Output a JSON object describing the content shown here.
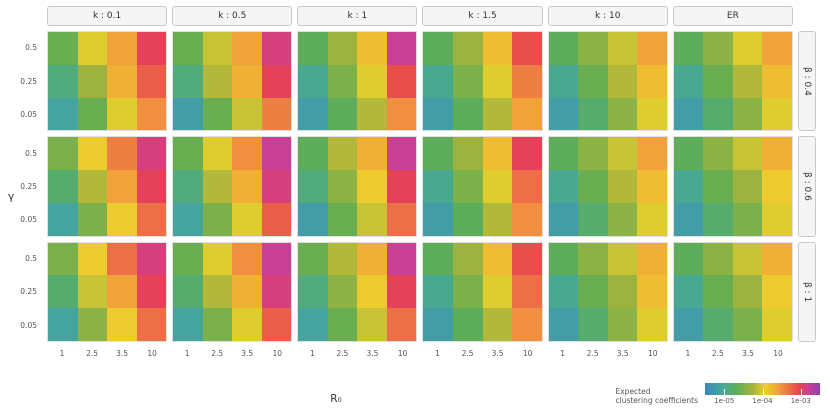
{
  "axes": {
    "x_title": "R₀",
    "y_title": "γ",
    "x_ticks": [
      "1",
      "2.5",
      "3.5",
      "10"
    ],
    "y_ticks": [
      "0.5",
      "0.25",
      "0.05"
    ]
  },
  "facets": {
    "columns": [
      "k : 0.1",
      "k : 0.5",
      "k : 1",
      "k : 1.5",
      "k : 10",
      "ER"
    ],
    "rows": [
      "β : 0.4",
      "β : 0.6",
      "β : 1"
    ]
  },
  "legend": {
    "title_line1": "Expected",
    "title_line2": "clustering coefficients",
    "tick_labels": [
      "1e-05",
      "1e-04",
      "1e-03"
    ],
    "tick_values": [
      1e-05,
      0.0001,
      0.001
    ]
  },
  "palette": {
    "stops": [
      {
        "t": 0.0,
        "color": "#3a87bf"
      },
      {
        "t": 0.15,
        "color": "#46a899"
      },
      {
        "t": 0.28,
        "color": "#5fae54"
      },
      {
        "t": 0.42,
        "color": "#a9b43c"
      },
      {
        "t": 0.52,
        "color": "#ecd22c"
      },
      {
        "t": 0.63,
        "color": "#f2a33a"
      },
      {
        "t": 0.73,
        "color": "#ed7047"
      },
      {
        "t": 0.82,
        "color": "#e8434e"
      },
      {
        "t": 0.9,
        "color": "#cb3f96"
      },
      {
        "t": 1.0,
        "color": "#8f3dab"
      }
    ]
  },
  "chart_data": {
    "type": "heatmap",
    "x": [
      1,
      2.5,
      3.5,
      10
    ],
    "y_top_to_bottom": [
      0.5,
      0.25,
      0.05
    ],
    "facet_cols": [
      "k : 0.1",
      "k : 0.5",
      "k : 1",
      "k : 1.5",
      "k : 10",
      "ER"
    ],
    "facet_rows": [
      "β : 0.4",
      "β : 0.6",
      "β : 1"
    ],
    "fill_label": "Expected clustering coefficients",
    "color_scale": "log10",
    "color_domain_log10": [
      -5.5,
      -2.5
    ],
    "panels": [
      {
        "row": "β : 0.4",
        "col": "k : 0.1",
        "values": [
          [
            2.5e-05,
            0.0001,
            0.00025,
            0.001
          ],
          [
            1.3e-05,
            5e-05,
            0.0002,
            0.00063
          ],
          [
            7.9e-06,
            2.5e-05,
            0.0001,
            0.00032
          ]
        ]
      },
      {
        "row": "β : 0.4",
        "col": "k : 0.5",
        "values": [
          [
            2.5e-05,
            7.9e-05,
            0.00025,
            0.0013
          ],
          [
            1.3e-05,
            6.3e-05,
            0.0002,
            0.001
          ],
          [
            6.3e-06,
            2.5e-05,
            7.9e-05,
            0.0004
          ]
        ]
      },
      {
        "row": "β : 0.4",
        "col": "k : 1",
        "values": [
          [
            2e-05,
            5e-05,
            0.00016,
            0.0016
          ],
          [
            1e-05,
            3.2e-05,
            0.0001,
            0.00079
          ],
          [
            6.3e-06,
            2e-05,
            6.3e-05,
            0.00032
          ]
        ]
      },
      {
        "row": "β : 0.4",
        "col": "k : 1.5",
        "values": [
          [
            2e-05,
            5e-05,
            0.00016,
            0.00079
          ],
          [
            1e-05,
            3.2e-05,
            0.0001,
            0.0004
          ],
          [
            6.3e-06,
            2e-05,
            6.3e-05,
            0.00025
          ]
        ]
      },
      {
        "row": "β : 0.4",
        "col": "k : 10",
        "values": [
          [
            2e-05,
            4e-05,
            7.9e-05,
            0.00025
          ],
          [
            1e-05,
            2.5e-05,
            6.3e-05,
            0.00016
          ],
          [
            6.3e-06,
            1.6e-05,
            4e-05,
            0.0001
          ]
        ]
      },
      {
        "row": "β : 0.4",
        "col": "ER",
        "values": [
          [
            2e-05,
            4e-05,
            0.0001,
            0.00025
          ],
          [
            1e-05,
            2.5e-05,
            6.3e-05,
            0.00016
          ],
          [
            6.3e-06,
            1.6e-05,
            4e-05,
            0.0001
          ]
        ]
      },
      {
        "row": "β : 0.6",
        "col": "k : 0.1",
        "values": [
          [
            3.2e-05,
            0.00013,
            0.0004,
            0.0013
          ],
          [
            1.6e-05,
            6.3e-05,
            0.00025,
            0.001
          ],
          [
            7.9e-06,
            3.2e-05,
            0.00013,
            0.0005
          ]
        ]
      },
      {
        "row": "β : 0.6",
        "col": "k : 0.5",
        "values": [
          [
            2.5e-05,
            0.0001,
            0.00032,
            0.0016
          ],
          [
            1.3e-05,
            6.3e-05,
            0.0002,
            0.0013
          ],
          [
            7.9e-06,
            3.2e-05,
            0.0001,
            0.00063
          ]
        ]
      },
      {
        "row": "β : 0.6",
        "col": "k : 1",
        "values": [
          [
            2e-05,
            6.3e-05,
            0.0002,
            0.0016
          ],
          [
            1.3e-05,
            4e-05,
            0.00013,
            0.001
          ],
          [
            6.3e-06,
            2.5e-05,
            7.9e-05,
            0.0005
          ]
        ]
      },
      {
        "row": "β : 0.6",
        "col": "k : 1.5",
        "values": [
          [
            2e-05,
            5e-05,
            0.00016,
            0.001
          ],
          [
            1e-05,
            3.2e-05,
            0.0001,
            0.0005
          ],
          [
            6.3e-06,
            2e-05,
            6.3e-05,
            0.00032
          ]
        ]
      },
      {
        "row": "β : 0.6",
        "col": "k : 10",
        "values": [
          [
            2e-05,
            4e-05,
            7.9e-05,
            0.00025
          ],
          [
            1e-05,
            2.5e-05,
            6.3e-05,
            0.00016
          ],
          [
            6.3e-06,
            1.6e-05,
            4e-05,
            0.0001
          ]
        ]
      },
      {
        "row": "β : 0.6",
        "col": "ER",
        "values": [
          [
            2e-05,
            4e-05,
            7.9e-05,
            0.0002
          ],
          [
            1e-05,
            2.5e-05,
            5e-05,
            0.00013
          ],
          [
            6.3e-06,
            1.6e-05,
            3.2e-05,
            0.0001
          ]
        ]
      },
      {
        "row": "β : 1",
        "col": "k : 0.1",
        "values": [
          [
            3.2e-05,
            0.00013,
            0.0005,
            0.0013
          ],
          [
            1.6e-05,
            7.9e-05,
            0.00025,
            0.001
          ],
          [
            7.9e-06,
            4e-05,
            0.00013,
            0.0005
          ]
        ]
      },
      {
        "row": "β : 1",
        "col": "k : 0.5",
        "values": [
          [
            2.5e-05,
            0.0001,
            0.00032,
            0.0016
          ],
          [
            1.6e-05,
            6.3e-05,
            0.0002,
            0.0013
          ],
          [
            7.9e-06,
            3.2e-05,
            0.0001,
            0.00063
          ]
        ]
      },
      {
        "row": "β : 1",
        "col": "k : 1",
        "values": [
          [
            2.5e-05,
            6.3e-05,
            0.0002,
            0.0016
          ],
          [
            1.3e-05,
            4e-05,
            0.00013,
            0.001
          ],
          [
            7.9e-06,
            2.5e-05,
            7.9e-05,
            0.0005
          ]
        ]
      },
      {
        "row": "β : 1",
        "col": "k : 1.5",
        "values": [
          [
            2e-05,
            5e-05,
            0.00016,
            0.00079
          ],
          [
            1e-05,
            3.2e-05,
            0.0001,
            0.0005
          ],
          [
            6.3e-06,
            2e-05,
            6.3e-05,
            0.00032
          ]
        ]
      },
      {
        "row": "β : 1",
        "col": "k : 10",
        "values": [
          [
            2e-05,
            4e-05,
            7.9e-05,
            0.0002
          ],
          [
            1e-05,
            2.5e-05,
            5e-05,
            0.00016
          ],
          [
            6.3e-06,
            1.6e-05,
            4e-05,
            0.0001
          ]
        ]
      },
      {
        "row": "β : 1",
        "col": "ER",
        "values": [
          [
            2e-05,
            4e-05,
            7.9e-05,
            0.0002
          ],
          [
            1e-05,
            2.5e-05,
            5e-05,
            0.00013
          ],
          [
            6.3e-06,
            1.6e-05,
            3.2e-05,
            0.0001
          ]
        ]
      }
    ]
  }
}
